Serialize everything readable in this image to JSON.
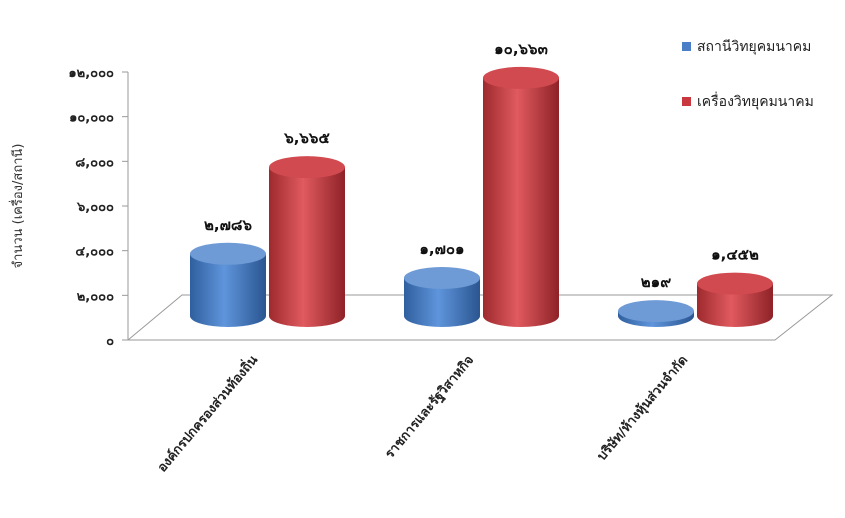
{
  "chart_data": {
    "type": "bar",
    "style": "3d-cylinder",
    "categories": [
      "องค์กรปกครองส่วนท้องถิ่น",
      "ราชการและรัฐวิสาหกิจ",
      "บริษัท/ห้างหุ้นส่วนจำกัด"
    ],
    "series": [
      {
        "name": "สถานีวิทยุคมนาคม",
        "color": "#4a7fc8",
        "values": [
          2786,
          1701,
          219
        ],
        "labels": [
          "๒,๗๘๖",
          "๑,๗๐๑",
          "๒๑๙"
        ]
      },
      {
        "name": "เครื่องวิทยุคมนาคม",
        "color": "#c8383e",
        "values": [
          6665,
          10663,
          1452
        ],
        "labels": [
          "๖,๖๖๕",
          "๑๐,๖๖๓",
          "๑,๔๕๒"
        ]
      }
    ],
    "ylabel": "จำนวน (เครื่อง/สถานี)",
    "ylim": [
      0,
      12000
    ],
    "yticks": [
      0,
      2000,
      4000,
      6000,
      8000,
      10000,
      12000
    ],
    "ytick_labels": [
      "๐",
      "๒,๐๐๐",
      "๔,๐๐๐",
      "๖,๐๐๐",
      "๘,๐๐๐",
      "๑๐,๐๐๐",
      "๑๒,๐๐๐"
    ],
    "grid": false,
    "legend_position": "top-right"
  }
}
